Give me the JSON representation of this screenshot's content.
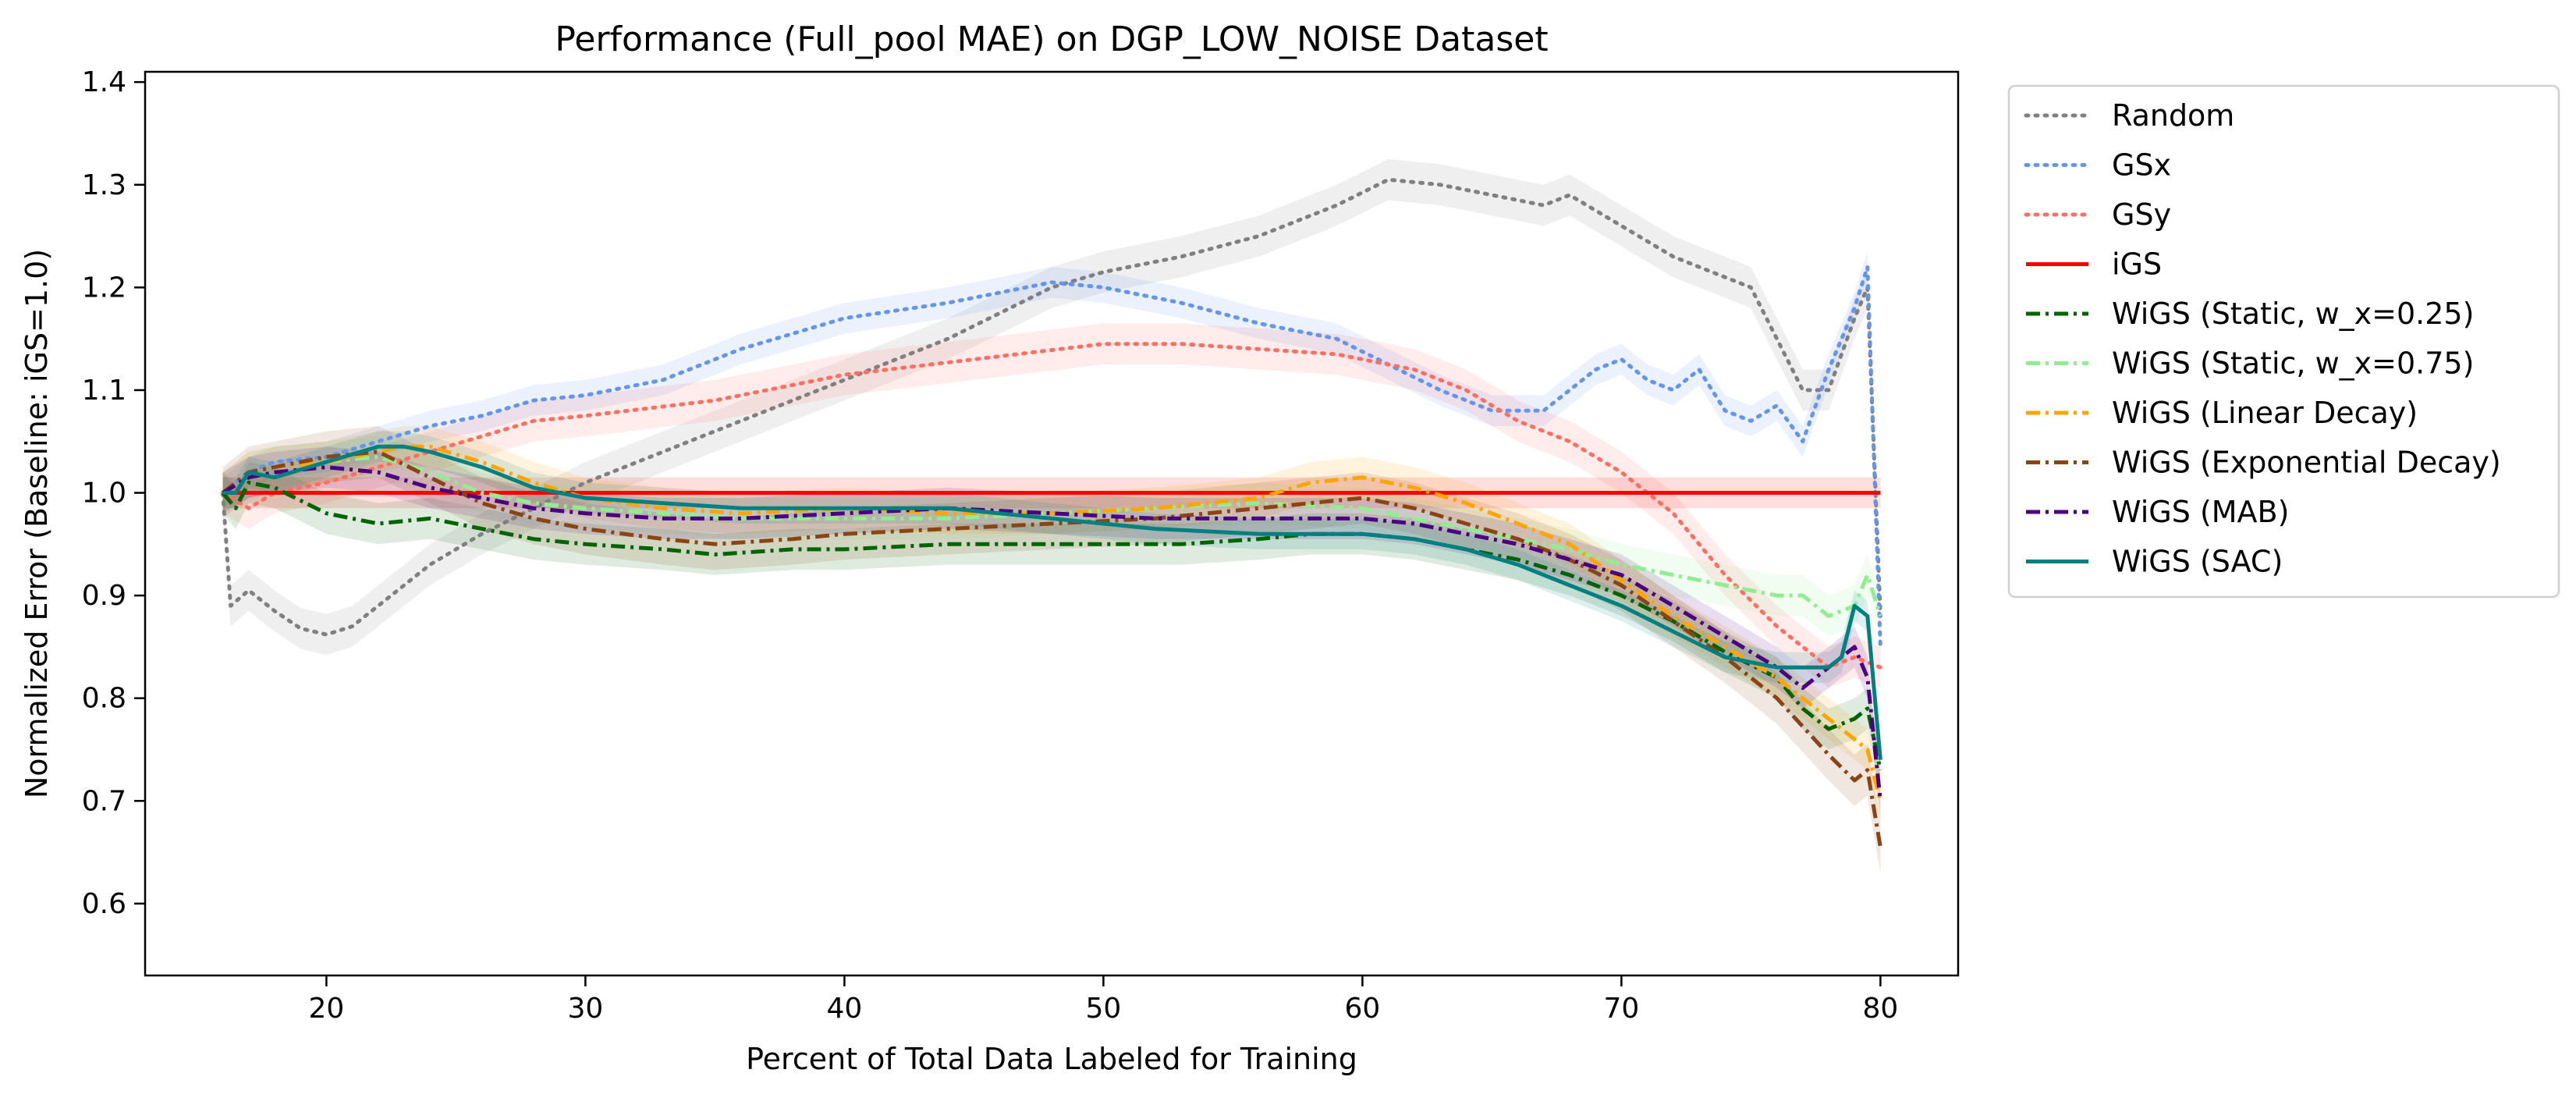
{
  "chart_data": {
    "type": "line",
    "title": "Performance (Full_pool MAE) on DGP_LOW_NOISE Dataset",
    "xlabel": "Percent of Total Data Labeled for Training",
    "ylabel": "Normalized Error (Baseline: iGS=1.0)",
    "xlim": [
      13,
      83
    ],
    "ylim": [
      0.53,
      1.41
    ],
    "xticks": [
      20,
      30,
      40,
      50,
      60,
      70,
      80
    ],
    "yticks": [
      0.6,
      0.7,
      0.8,
      0.9,
      1.0,
      1.1,
      1.2,
      1.3,
      1.4
    ],
    "xtick_labels": [
      "20",
      "30",
      "40",
      "50",
      "60",
      "70",
      "80"
    ],
    "ytick_labels": [
      "0.6",
      "0.7",
      "0.8",
      "0.9",
      "1.0",
      "1.1",
      "1.2",
      "1.3",
      "1.4"
    ],
    "grid": false,
    "legend": "outside-right",
    "series": [
      {
        "name": "Random",
        "color": "#808080",
        "dash": "dotted",
        "band": 0.02,
        "x": [
          16,
          16.3,
          17,
          18,
          19,
          20,
          21,
          22,
          24,
          26,
          28,
          30,
          33,
          36,
          40,
          44,
          48,
          50,
          53,
          56,
          59,
          61,
          63,
          65,
          67,
          68,
          70,
          72,
          74,
          75,
          76,
          77,
          78,
          79,
          79.5,
          80
        ],
        "y": [
          1.0,
          0.89,
          0.905,
          0.885,
          0.868,
          0.862,
          0.87,
          0.89,
          0.93,
          0.96,
          0.985,
          1.01,
          1.04,
          1.07,
          1.11,
          1.15,
          1.2,
          1.215,
          1.23,
          1.25,
          1.28,
          1.305,
          1.3,
          1.29,
          1.28,
          1.29,
          1.26,
          1.23,
          1.21,
          1.2,
          1.15,
          1.1,
          1.1,
          1.17,
          1.2,
          0.88
        ]
      },
      {
        "name": "GSx",
        "color": "#6495ED",
        "dash": "dotted",
        "band": 0.015,
        "x": [
          16,
          17,
          18,
          20,
          22,
          24,
          26,
          28,
          30,
          33,
          36,
          40,
          44,
          48,
          50,
          53,
          56,
          59,
          61,
          63,
          65,
          67,
          69,
          70,
          71,
          72,
          73,
          74,
          75,
          76,
          77,
          78,
          79,
          79.5,
          80
        ],
        "y": [
          1.0,
          1.02,
          1.03,
          1.035,
          1.05,
          1.065,
          1.075,
          1.09,
          1.095,
          1.11,
          1.14,
          1.17,
          1.185,
          1.205,
          1.2,
          1.185,
          1.165,
          1.15,
          1.125,
          1.1,
          1.08,
          1.08,
          1.12,
          1.13,
          1.11,
          1.1,
          1.12,
          1.08,
          1.07,
          1.085,
          1.05,
          1.12,
          1.18,
          1.22,
          0.85
        ]
      },
      {
        "name": "GSy",
        "color": "#FF6F61",
        "dash": "dotted",
        "band": 0.02,
        "x": [
          16,
          17,
          18,
          20,
          22,
          24,
          26,
          28,
          30,
          35,
          40,
          45,
          50,
          53,
          56,
          59,
          62,
          64,
          66,
          68,
          70,
          72,
          74,
          76,
          78,
          79,
          80
        ],
        "y": [
          1.0,
          0.985,
          1.0,
          1.01,
          1.025,
          1.04,
          1.055,
          1.07,
          1.075,
          1.09,
          1.115,
          1.13,
          1.145,
          1.145,
          1.14,
          1.135,
          1.12,
          1.1,
          1.07,
          1.05,
          1.02,
          0.98,
          0.92,
          0.87,
          0.83,
          0.84,
          0.83
        ]
      },
      {
        "name": "iGS",
        "color": "#FF0000",
        "dash": "solid",
        "band": 0.015,
        "x": [
          16,
          80
        ],
        "y": [
          1.0,
          1.0
        ]
      },
      {
        "name": "WiGS (Static, w_x=0.25)",
        "color": "#006400",
        "dash": "dashdot",
        "band": 0.02,
        "x": [
          16,
          16.5,
          17,
          18,
          20,
          22,
          24,
          26,
          28,
          30,
          33,
          35,
          38,
          40,
          44,
          48,
          50,
          53,
          56,
          58,
          60,
          62,
          64,
          66,
          68,
          70,
          72,
          74,
          76,
          77,
          78,
          79,
          79.5,
          80
        ],
        "y": [
          1.0,
          0.985,
          1.01,
          1.005,
          0.98,
          0.97,
          0.975,
          0.965,
          0.955,
          0.95,
          0.945,
          0.94,
          0.945,
          0.945,
          0.95,
          0.95,
          0.95,
          0.95,
          0.955,
          0.96,
          0.96,
          0.955,
          0.945,
          0.935,
          0.92,
          0.9,
          0.875,
          0.845,
          0.82,
          0.79,
          0.77,
          0.78,
          0.79,
          0.73
        ]
      },
      {
        "name": "WiGS (Static, w_x=0.75)",
        "color": "#90EE90",
        "dash": "dashdot",
        "band": 0.02,
        "x": [
          16,
          17,
          18,
          20,
          22,
          24,
          26,
          28,
          30,
          33,
          36,
          40,
          44,
          48,
          52,
          56,
          60,
          63,
          66,
          68,
          70,
          72,
          74,
          76,
          77,
          78,
          79,
          79.5,
          80
        ],
        "y": [
          1.0,
          1.02,
          1.025,
          1.03,
          1.035,
          1.02,
          1.0,
          0.99,
          0.985,
          0.98,
          0.975,
          0.975,
          0.975,
          0.98,
          0.985,
          0.99,
          0.985,
          0.97,
          0.955,
          0.945,
          0.93,
          0.92,
          0.91,
          0.9,
          0.9,
          0.88,
          0.89,
          0.92,
          0.88
        ]
      },
      {
        "name": "WiGS (Linear Decay)",
        "color": "#FFA500",
        "dash": "dashdot",
        "band": 0.02,
        "x": [
          16,
          17,
          18,
          20,
          22,
          23,
          24,
          26,
          28,
          30,
          33,
          36,
          40,
          44,
          48,
          52,
          56,
          58,
          60,
          62,
          64,
          66,
          68,
          70,
          72,
          74,
          76,
          78,
          79,
          79.5,
          80
        ],
        "y": [
          1.0,
          1.02,
          1.025,
          1.03,
          1.04,
          1.045,
          1.045,
          1.03,
          1.01,
          0.995,
          0.985,
          0.98,
          0.985,
          0.98,
          0.98,
          0.985,
          0.995,
          1.01,
          1.015,
          1.005,
          0.99,
          0.97,
          0.95,
          0.915,
          0.88,
          0.85,
          0.82,
          0.78,
          0.76,
          0.75,
          0.7
        ]
      },
      {
        "name": "WiGS (Exponential Decay)",
        "color": "#8B4513",
        "dash": "dashdot",
        "band": 0.025,
        "x": [
          16,
          17,
          18,
          20,
          22,
          24,
          26,
          28,
          30,
          33,
          35,
          38,
          40,
          44,
          48,
          52,
          56,
          58,
          60,
          62,
          64,
          66,
          68,
          70,
          72,
          74,
          76,
          78,
          79,
          79.5,
          80
        ],
        "y": [
          1.0,
          1.02,
          1.025,
          1.035,
          1.04,
          1.015,
          0.99,
          0.975,
          0.965,
          0.955,
          0.95,
          0.955,
          0.96,
          0.965,
          0.97,
          0.975,
          0.985,
          0.99,
          0.995,
          0.985,
          0.97,
          0.955,
          0.935,
          0.91,
          0.875,
          0.84,
          0.8,
          0.745,
          0.72,
          0.73,
          0.655
        ]
      },
      {
        "name": "WiGS (MAB)",
        "color": "#4B0082",
        "dash": "dashdot",
        "band": 0.02,
        "x": [
          16,
          17,
          18,
          20,
          22,
          24,
          26,
          28,
          30,
          33,
          36,
          40,
          44,
          48,
          52,
          56,
          60,
          62,
          64,
          66,
          68,
          70,
          72,
          74,
          76,
          77,
          78,
          79,
          79.5,
          80
        ],
        "y": [
          1.0,
          1.015,
          1.02,
          1.025,
          1.02,
          1.005,
          0.995,
          0.985,
          0.98,
          0.975,
          0.975,
          0.98,
          0.985,
          0.98,
          0.975,
          0.975,
          0.975,
          0.97,
          0.96,
          0.95,
          0.935,
          0.92,
          0.89,
          0.86,
          0.83,
          0.81,
          0.83,
          0.85,
          0.82,
          0.7
        ]
      },
      {
        "name": "WiGS (SAC)",
        "color": "#008080",
        "dash": "solid",
        "band": 0.015,
        "x": [
          16,
          16.5,
          17,
          18,
          20,
          22,
          23,
          24,
          26,
          28,
          30,
          33,
          36,
          40,
          44,
          48,
          52,
          56,
          60,
          62,
          64,
          66,
          68,
          70,
          72,
          74,
          76,
          78,
          78.5,
          79,
          79.5,
          80
        ],
        "y": [
          1.0,
          1.0,
          1.02,
          1.015,
          1.03,
          1.045,
          1.045,
          1.04,
          1.025,
          1.005,
          0.995,
          0.99,
          0.985,
          0.985,
          0.985,
          0.975,
          0.965,
          0.96,
          0.96,
          0.955,
          0.945,
          0.93,
          0.91,
          0.89,
          0.865,
          0.84,
          0.83,
          0.83,
          0.84,
          0.89,
          0.88,
          0.74
        ]
      }
    ]
  }
}
